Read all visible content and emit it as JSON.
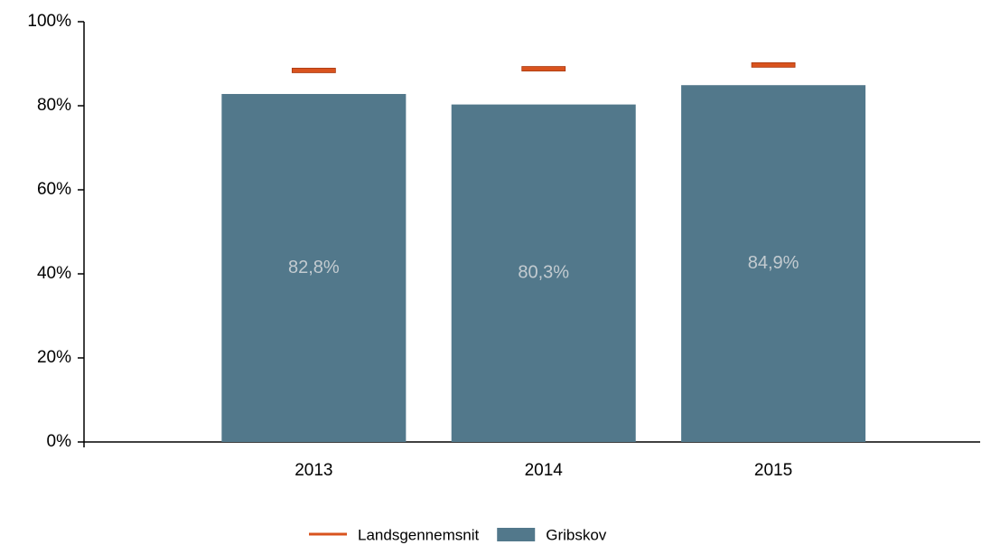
{
  "chart_data": {
    "type": "bar",
    "categories": [
      "2013",
      "2014",
      "2015"
    ],
    "series": [
      {
        "name": "Landsgennemsnit",
        "color": "#d9531e",
        "mark": "dash",
        "values": [
          88.4,
          88.8,
          89.7
        ]
      },
      {
        "name": "Gribskov",
        "color": "#52788b",
        "mark": "bar",
        "values": [
          82.8,
          80.3,
          84.9
        ],
        "value_labels": [
          "82,8%",
          "80,3%",
          "84,9%"
        ]
      }
    ],
    "ylim": [
      0,
      100
    ],
    "yticks": [
      {
        "value": 0,
        "label": "0%"
      },
      {
        "value": 20,
        "label": "20%"
      },
      {
        "value": 40,
        "label": "40%"
      },
      {
        "value": 60,
        "label": "60%"
      },
      {
        "value": 80,
        "label": "80%"
      },
      {
        "value": 100,
        "label": "100%"
      }
    ],
    "grid": false,
    "legend": "bottom"
  }
}
